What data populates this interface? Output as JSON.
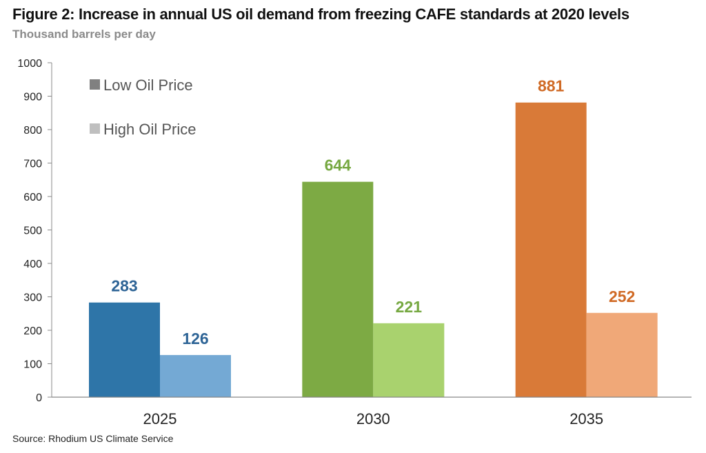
{
  "chart_data": {
    "type": "bar",
    "title": "Figure 2: Increase in annual US oil demand from freezing CAFE standards at 2020 levels",
    "subtitle": "Thousand barrels per day",
    "source": "Source: Rhodium US Climate Service",
    "categories": [
      "2025",
      "2030",
      "2035"
    ],
    "series": [
      {
        "name": "Low Oil Price",
        "values": [
          283,
          644,
          881
        ],
        "legend_color": "#808080",
        "colors": [
          "#2e75a8",
          "#7daa44",
          "#d97a38"
        ]
      },
      {
        "name": "High Oil Price",
        "values": [
          126,
          221,
          252
        ],
        "legend_color": "#bfbfbf",
        "colors": [
          "#74a9d4",
          "#a9d26e",
          "#f0a878"
        ]
      }
    ],
    "label_colors": [
      "#2e6496",
      "#76a841",
      "#d06a25"
    ],
    "yticks": [
      "0",
      "100",
      "200",
      "300",
      "400",
      "500",
      "600",
      "700",
      "800",
      "900",
      "1000"
    ],
    "ylim": [
      0,
      1000
    ],
    "grid": false,
    "legend_position": "top-left"
  }
}
